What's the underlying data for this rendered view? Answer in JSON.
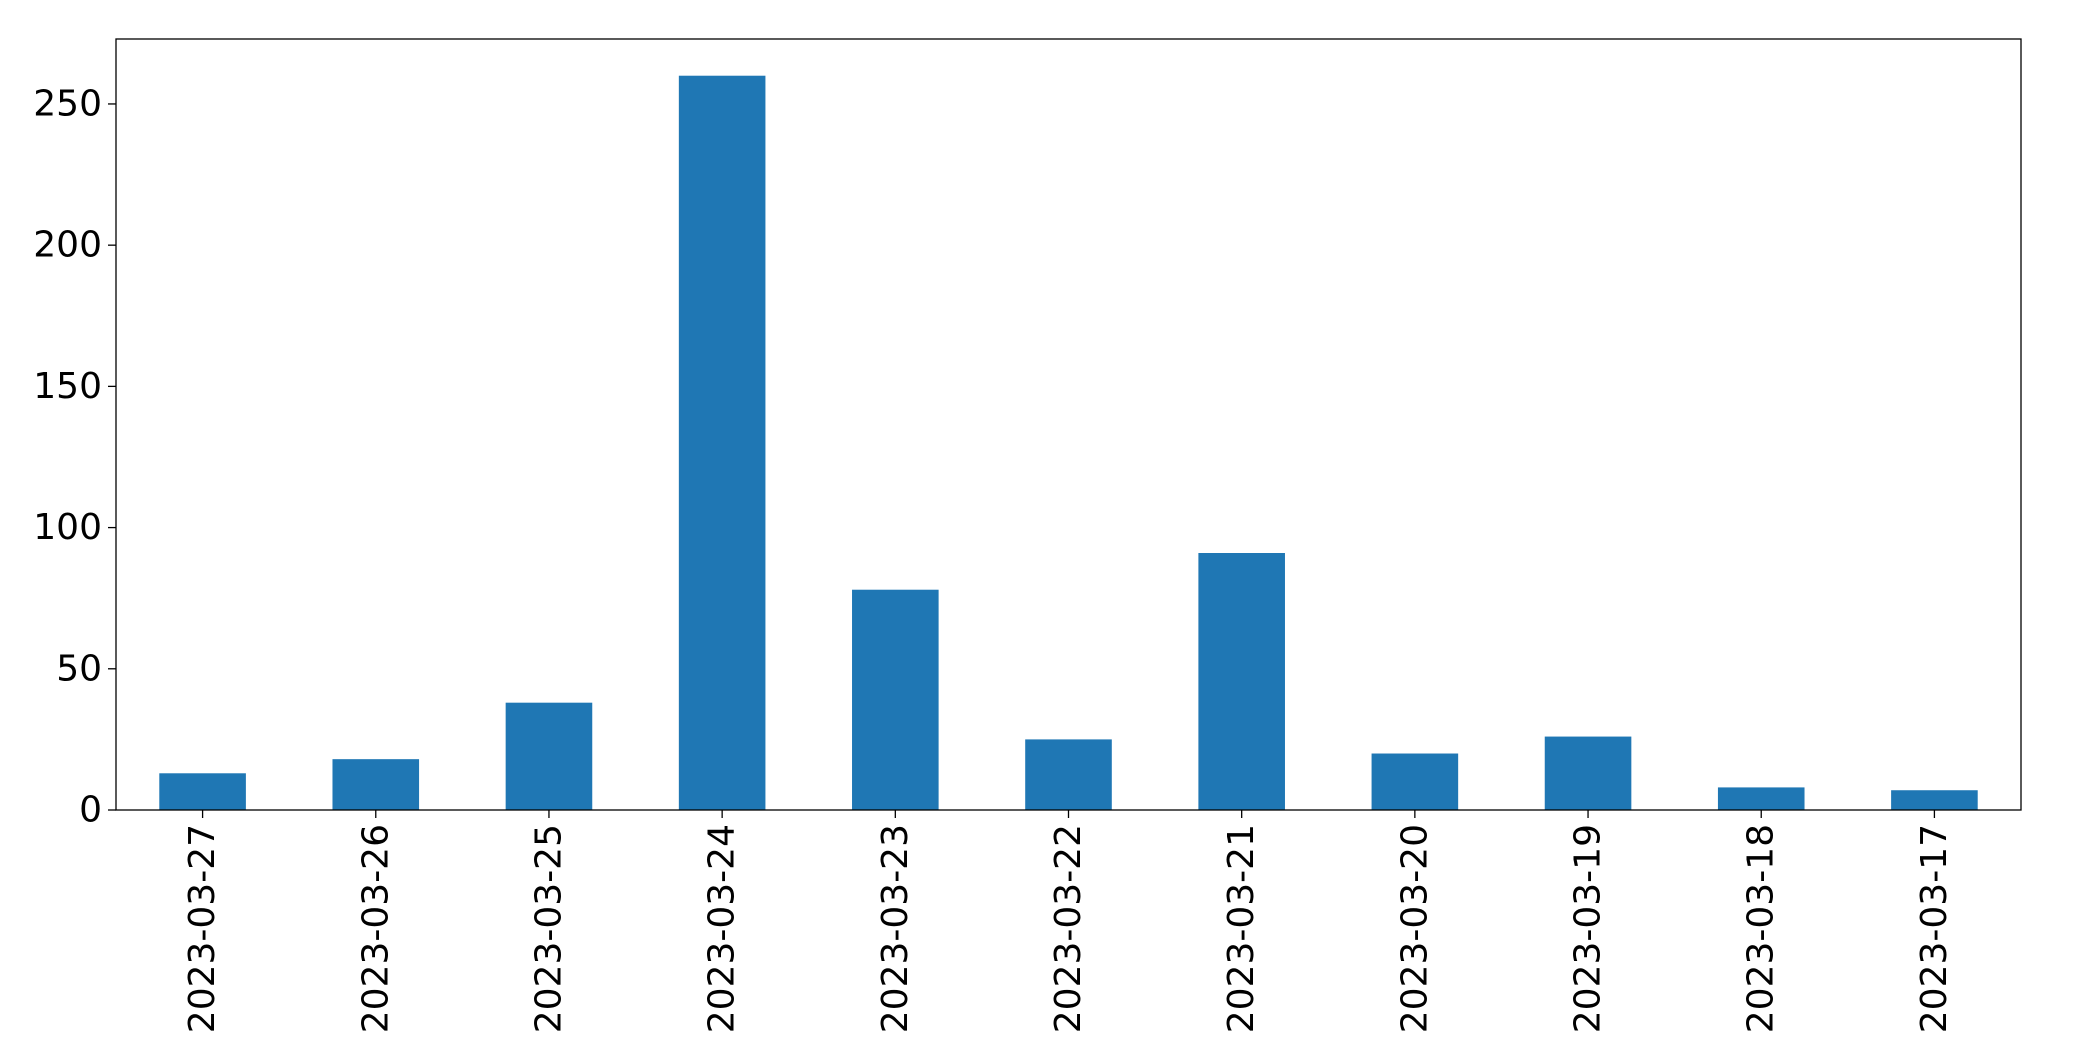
{
  "chart_data": {
    "type": "bar",
    "title": "",
    "xlabel": "",
    "ylabel": "",
    "categories": [
      "2023-03-27",
      "2023-03-26",
      "2023-03-25",
      "2023-03-24",
      "2023-03-23",
      "2023-03-22",
      "2023-03-21",
      "2023-03-20",
      "2023-03-19",
      "2023-03-18",
      "2023-03-17"
    ],
    "values": [
      13,
      18,
      38,
      260,
      78,
      25,
      91,
      20,
      26,
      8,
      7
    ],
    "ylim": [
      0,
      273
    ],
    "yticks": [
      0,
      50,
      100,
      150,
      200,
      250
    ],
    "grid": false,
    "legend": "none",
    "bar_color": "#1f77b4",
    "x_tick_rotation_deg": 90
  }
}
